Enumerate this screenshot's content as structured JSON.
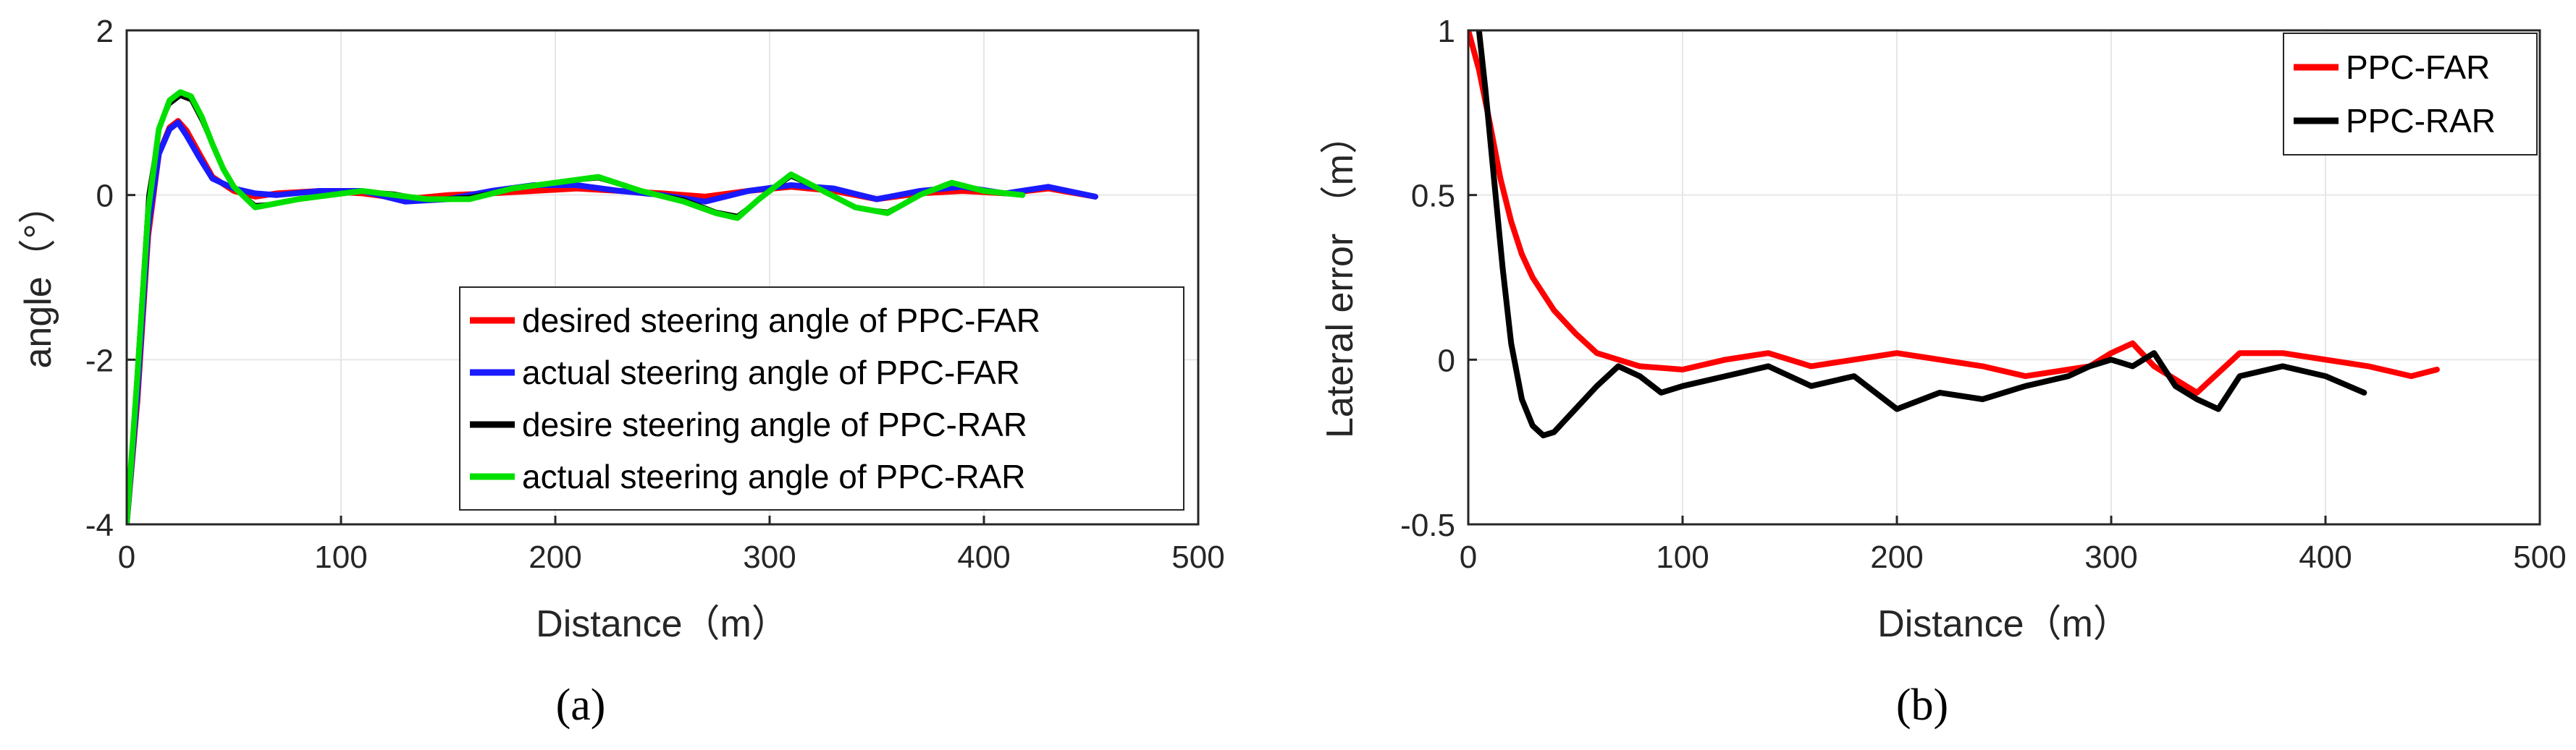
{
  "chart_data": [
    {
      "type": "line",
      "panel_label": "(a)",
      "xlabel": "Distance（m）",
      "ylabel": "angle（°）",
      "xlim": [
        0,
        500
      ],
      "ylim": [
        -4,
        2
      ],
      "xticks": [
        0,
        100,
        200,
        300,
        400,
        500
      ],
      "yticks": [
        -4,
        -2,
        0,
        2
      ],
      "grid": true,
      "legend_position": "bottom-right",
      "series": [
        {
          "name": "desired steering angle of PPC-FAR",
          "color": "#ff0000",
          "x": [
            0,
            5,
            10,
            15,
            20,
            24,
            28,
            34,
            40,
            50,
            60,
            70,
            90,
            110,
            130,
            150,
            170,
            190,
            210,
            230,
            250,
            270,
            290,
            310,
            330,
            350,
            370,
            390,
            410,
            430,
            452
          ],
          "y": [
            -4.0,
            -2.5,
            -0.5,
            0.5,
            0.82,
            0.9,
            0.78,
            0.5,
            0.22,
            0.05,
            -0.02,
            0.02,
            0.05,
            0.02,
            -0.05,
            0.0,
            0.02,
            0.05,
            0.08,
            0.05,
            0.02,
            -0.02,
            0.05,
            0.1,
            0.05,
            -0.05,
            0.02,
            0.05,
            0.02,
            0.08,
            -0.02
          ]
        },
        {
          "name": "actual steering angle of PPC-FAR",
          "color": "#1a1aff",
          "x": [
            0,
            5,
            10,
            15,
            20,
            24,
            28,
            34,
            40,
            50,
            60,
            70,
            90,
            110,
            130,
            150,
            170,
            190,
            210,
            230,
            250,
            270,
            290,
            310,
            330,
            350,
            370,
            390,
            410,
            430,
            452
          ],
          "y": [
            -4.0,
            -2.4,
            -0.4,
            0.5,
            0.8,
            0.88,
            0.72,
            0.45,
            0.2,
            0.08,
            0.02,
            0.0,
            0.05,
            0.05,
            -0.08,
            -0.05,
            0.05,
            0.12,
            0.12,
            0.05,
            0.0,
            -0.08,
            0.05,
            0.12,
            0.08,
            -0.05,
            0.05,
            0.1,
            0.02,
            0.1,
            -0.02
          ]
        },
        {
          "name": "desire steering angle of PPC-RAR",
          "color": "#000000",
          "x": [
            0,
            5,
            10,
            15,
            20,
            25,
            30,
            35,
            40,
            45,
            50,
            60,
            70,
            80,
            95,
            110,
            125,
            140,
            160,
            180,
            200,
            220,
            240,
            260,
            275,
            285,
            295,
            310,
            325,
            340,
            355,
            370,
            385,
            400,
            418
          ],
          "y": [
            -4.0,
            -2.0,
            0.0,
            0.8,
            1.1,
            1.2,
            1.15,
            0.9,
            0.6,
            0.3,
            0.1,
            -0.12,
            -0.1,
            -0.05,
            0.0,
            0.05,
            0.02,
            -0.05,
            -0.02,
            0.08,
            0.15,
            0.2,
            0.05,
            -0.05,
            -0.2,
            -0.25,
            -0.05,
            0.22,
            0.05,
            -0.15,
            -0.2,
            0.0,
            0.15,
            0.05,
            0.0
          ]
        },
        {
          "name": "actual steering angle of PPC-RAR",
          "color": "#00e000",
          "x": [
            0,
            5,
            10,
            15,
            20,
            25,
            30,
            35,
            40,
            45,
            50,
            60,
            70,
            80,
            95,
            110,
            125,
            140,
            160,
            180,
            200,
            220,
            240,
            260,
            275,
            285,
            295,
            310,
            325,
            340,
            355,
            370,
            385,
            400,
            418
          ],
          "y": [
            -4.0,
            -2.2,
            -0.2,
            0.8,
            1.15,
            1.25,
            1.2,
            0.95,
            0.62,
            0.32,
            0.1,
            -0.15,
            -0.1,
            -0.05,
            0.0,
            0.05,
            0.0,
            -0.05,
            -0.05,
            0.08,
            0.15,
            0.22,
            0.05,
            -0.08,
            -0.22,
            -0.28,
            -0.05,
            0.25,
            0.05,
            -0.15,
            -0.22,
            0.0,
            0.15,
            0.05,
            0.0
          ]
        }
      ]
    },
    {
      "type": "line",
      "panel_label": "(b)",
      "xlabel": "Distance（m）",
      "ylabel": "Lateral error （m）",
      "xlim": [
        0,
        500
      ],
      "ylim": [
        -0.5,
        1
      ],
      "xticks": [
        0,
        100,
        200,
        300,
        400,
        500
      ],
      "yticks": [
        -0.5,
        0,
        0.5,
        1
      ],
      "ytick_labels": [
        "-0.5",
        "0",
        "0.5",
        "1"
      ],
      "grid": true,
      "legend_position": "top-right",
      "series": [
        {
          "name": "PPC-FAR",
          "color": "#ff0000",
          "x": [
            0,
            5,
            10,
            15,
            20,
            25,
            30,
            40,
            50,
            60,
            70,
            80,
            100,
            120,
            140,
            160,
            180,
            200,
            220,
            240,
            260,
            280,
            290,
            300,
            310,
            320,
            330,
            340,
            360,
            380,
            400,
            420,
            440,
            452
          ],
          "y": [
            1.0,
            0.88,
            0.72,
            0.55,
            0.42,
            0.32,
            0.25,
            0.15,
            0.08,
            0.02,
            0.0,
            -0.02,
            -0.03,
            0.0,
            0.02,
            -0.02,
            0.0,
            0.02,
            0.0,
            -0.02,
            -0.05,
            -0.03,
            -0.02,
            0.02,
            0.05,
            -0.02,
            -0.06,
            -0.1,
            0.02,
            0.02,
            0.0,
            -0.02,
            -0.05,
            -0.03
          ]
        },
        {
          "name": "PPC-RAR",
          "color": "#000000",
          "x": [
            5,
            8,
            12,
            16,
            20,
            25,
            30,
            35,
            40,
            50,
            60,
            70,
            80,
            90,
            100,
            120,
            140,
            160,
            180,
            200,
            220,
            240,
            260,
            280,
            290,
            300,
            310,
            320,
            330,
            340,
            350,
            360,
            380,
            400,
            418
          ],
          "y": [
            1.0,
            0.82,
            0.55,
            0.28,
            0.05,
            -0.12,
            -0.2,
            -0.23,
            -0.22,
            -0.15,
            -0.08,
            -0.02,
            -0.05,
            -0.1,
            -0.08,
            -0.05,
            -0.02,
            -0.08,
            -0.05,
            -0.15,
            -0.1,
            -0.12,
            -0.08,
            -0.05,
            -0.02,
            0.0,
            -0.02,
            0.02,
            -0.08,
            -0.12,
            -0.15,
            -0.05,
            -0.02,
            -0.05,
            -0.1
          ]
        }
      ]
    }
  ]
}
